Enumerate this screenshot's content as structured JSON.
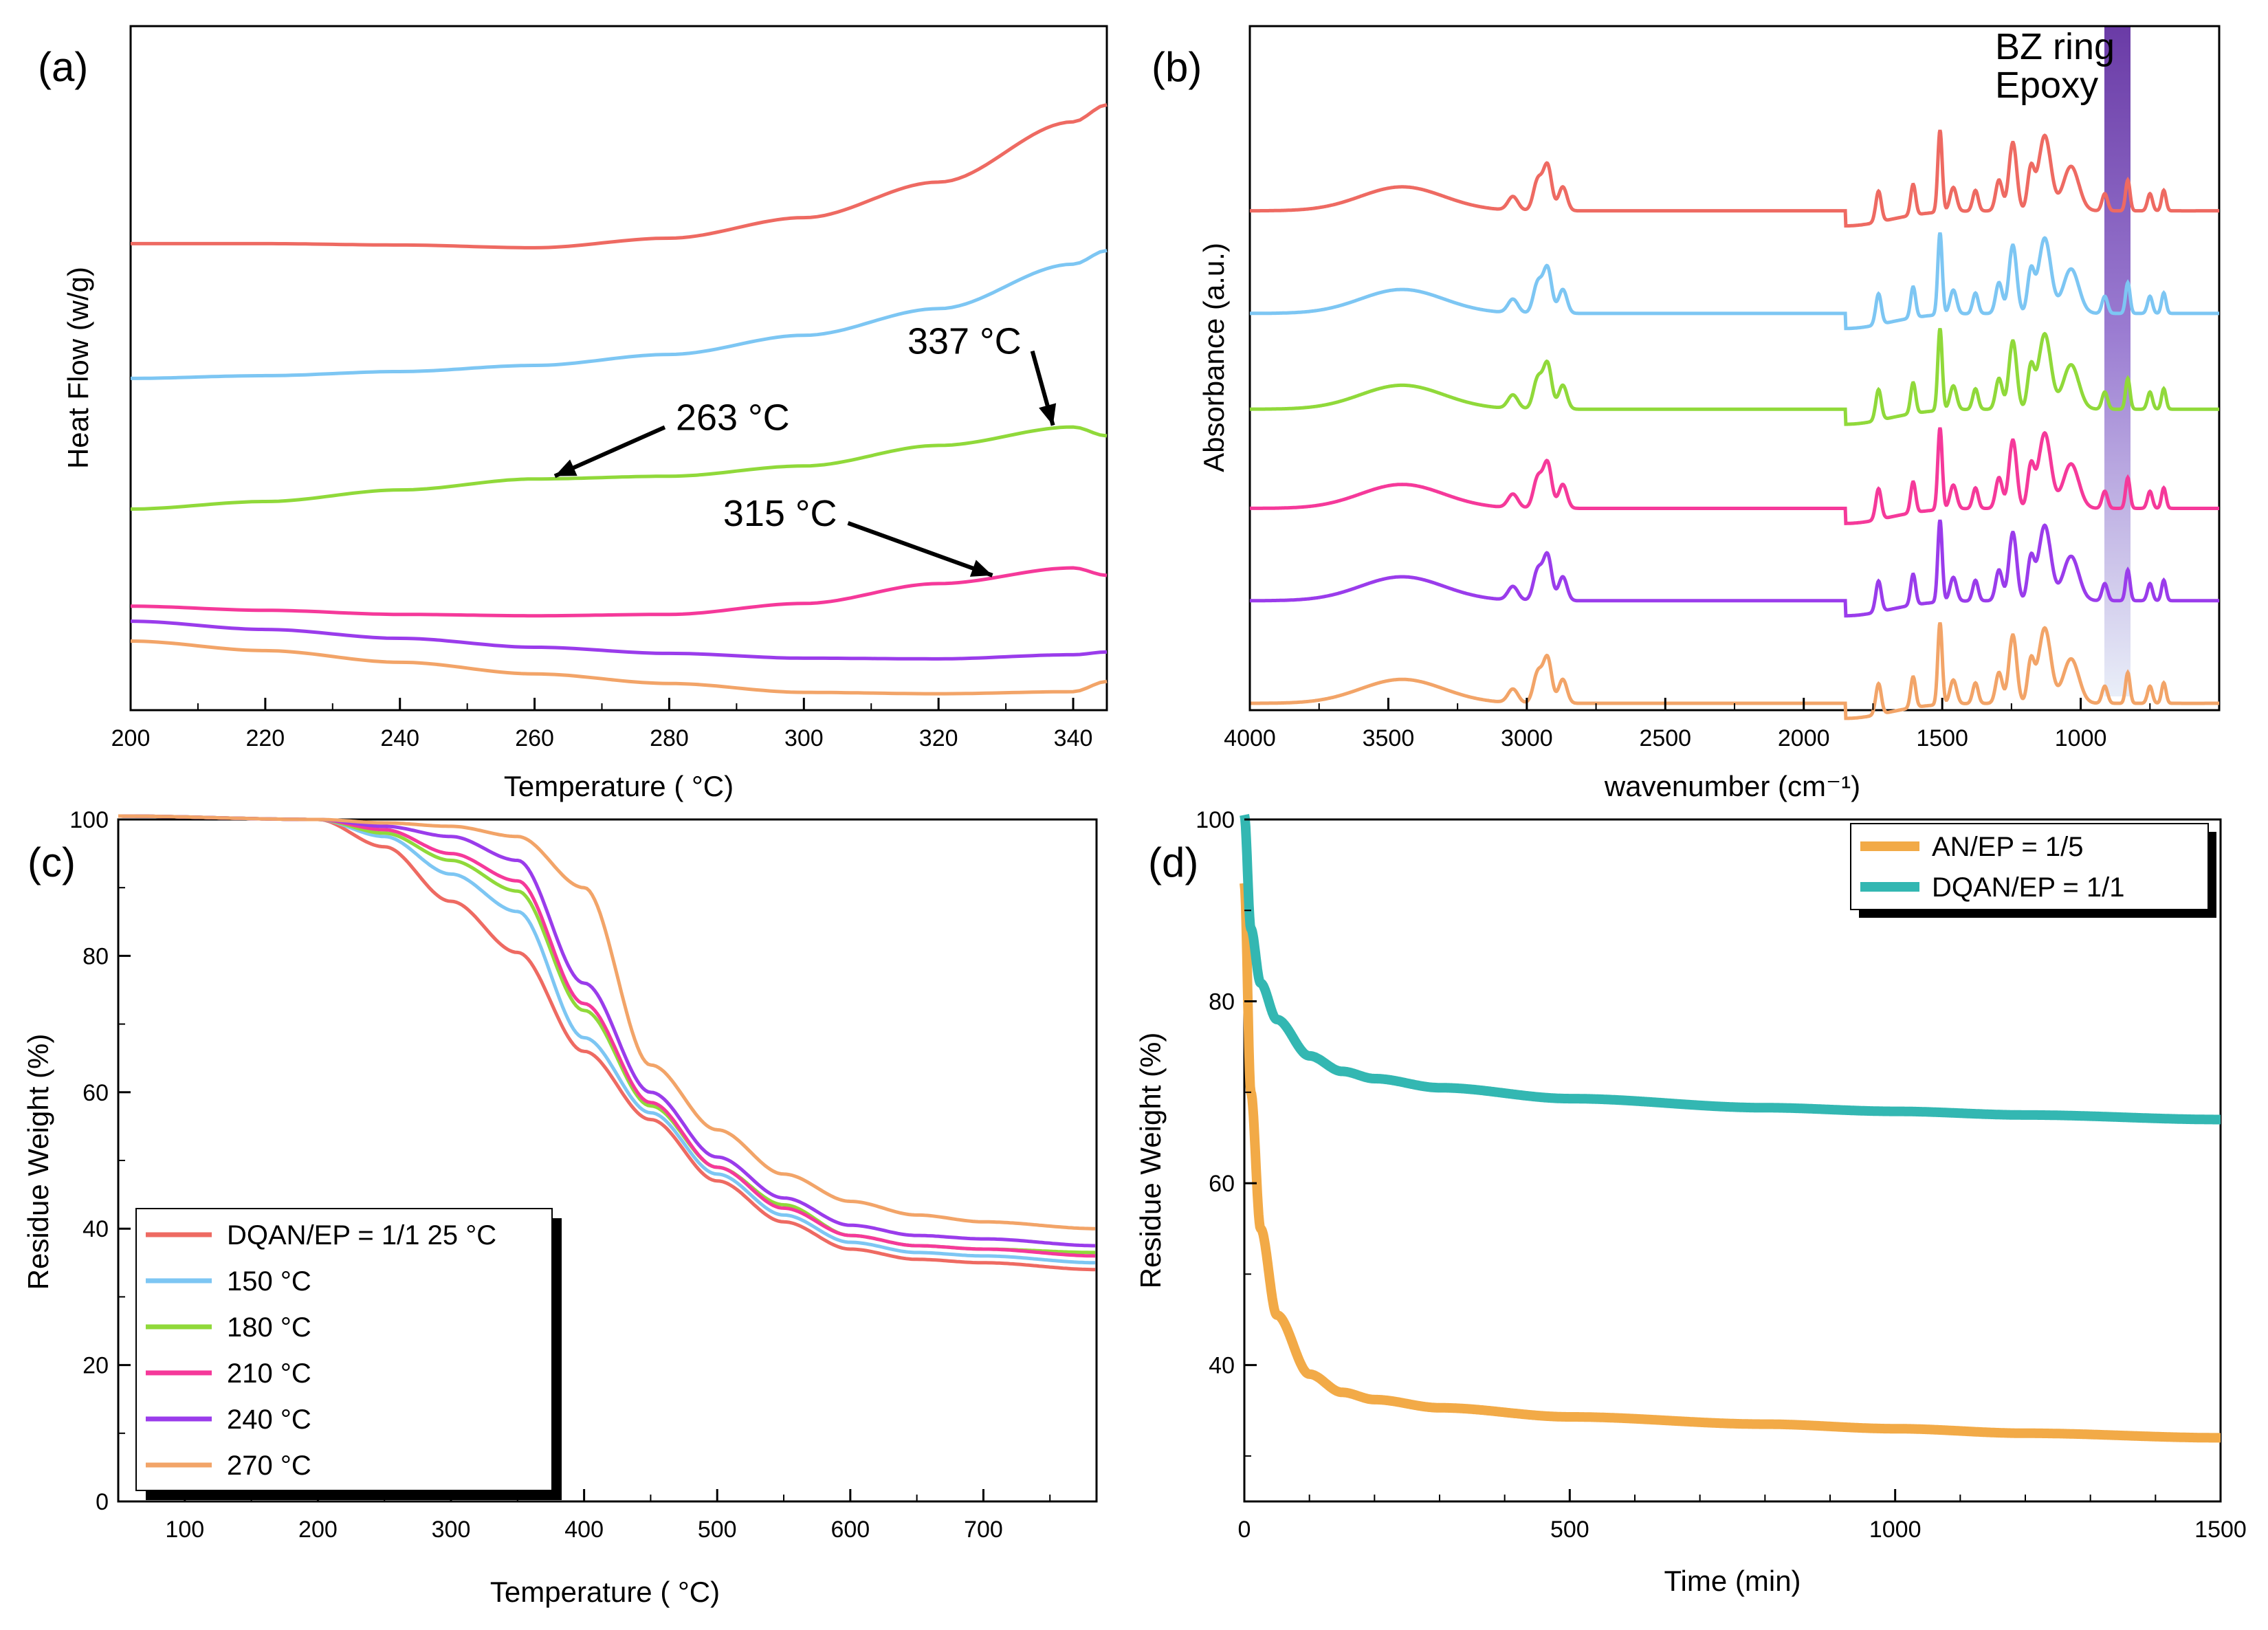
{
  "chart_data": [
    {
      "panel": "(a)",
      "type": "line",
      "xlabel": "Temperature ( °C)",
      "ylabel": "Heat Flow (w/g)",
      "xlim": [
        200,
        345
      ],
      "ylim": [
        0,
        100
      ],
      "xticks": [
        200,
        220,
        240,
        260,
        280,
        300,
        320,
        340
      ],
      "x": [
        200,
        220,
        240,
        260,
        280,
        300,
        320,
        340,
        345
      ],
      "series": [
        {
          "name": "25 °C",
          "color": "#EE6A62",
          "values": [
            68.2,
            68.2,
            68.0,
            67.6,
            69.0,
            72.0,
            77.2,
            86.0,
            88.5
          ]
        },
        {
          "name": "150 °C",
          "color": "#7DC6F3",
          "values": [
            48.5,
            48.9,
            49.5,
            50.4,
            52.0,
            54.8,
            58.7,
            65.2,
            67.2
          ]
        },
        {
          "name": "180 °C",
          "color": "#90D93A",
          "values": [
            29.4,
            30.5,
            32.2,
            33.8,
            34.2,
            35.7,
            38.7,
            41.4,
            40.1
          ]
        },
        {
          "name": "210 °C",
          "color": "#F5399A",
          "values": [
            15.2,
            14.6,
            14.0,
            13.8,
            14.0,
            15.6,
            18.5,
            20.8,
            19.7
          ]
        },
        {
          "name": "240 °C",
          "color": "#9A3CEB",
          "values": [
            13.0,
            11.8,
            10.5,
            9.2,
            8.3,
            7.6,
            7.5,
            8.1,
            8.5
          ]
        },
        {
          "name": "270 °C",
          "color": "#F2A468",
          "values": [
            10.1,
            8.7,
            7.0,
            5.3,
            3.9,
            2.6,
            2.4,
            2.7,
            4.2
          ]
        }
      ],
      "annotations": [
        {
          "label": "263 °C",
          "x": 263,
          "series": "180 °C"
        },
        {
          "label": "337 °C",
          "x": 337,
          "series": "180 °C"
        },
        {
          "label": "315 °C",
          "x": 328,
          "series": "210 °C"
        }
      ]
    },
    {
      "panel": "(b)",
      "type": "line",
      "xlabel": "wavenumber (cm⁻¹)",
      "ylabel": "Absorbance (a.u.)",
      "xlim": [
        4000,
        500
      ],
      "ylim": [
        0,
        100
      ],
      "xticks": [
        4000,
        3500,
        3000,
        2500,
        2000,
        1500,
        1000
      ],
      "band_labels": [
        "BZ ring",
        "Epoxy"
      ],
      "band_center": 913,
      "peaks": [
        {
          "x": 3450,
          "w": 150,
          "h": 3.5
        },
        {
          "x": 3050,
          "w": 18,
          "h": 2.0
        },
        {
          "x": 2960,
          "w": 16,
          "h": 4.5
        },
        {
          "x": 2925,
          "w": 15,
          "h": 6.5
        },
        {
          "x": 2870,
          "w": 15,
          "h": 3.5
        },
        {
          "x": 1730,
          "w": 10,
          "h": 4.5
        },
        {
          "x": 1605,
          "w": 9,
          "h": 4.5
        },
        {
          "x": 1508,
          "w": 8,
          "h": 12.0
        },
        {
          "x": 1460,
          "w": 12,
          "h": 3.5
        },
        {
          "x": 1380,
          "w": 10,
          "h": 3.0
        },
        {
          "x": 1295,
          "w": 12,
          "h": 4.5
        },
        {
          "x": 1245,
          "w": 14,
          "h": 10.0
        },
        {
          "x": 1180,
          "w": 12,
          "h": 6.0
        },
        {
          "x": 1130,
          "w": 22,
          "h": 11.0
        },
        {
          "x": 1035,
          "w": 28,
          "h": 6.5
        },
        {
          "x": 913,
          "w": 10,
          "h": 2.5
        },
        {
          "x": 830,
          "w": 8,
          "h": 4.5
        },
        {
          "x": 750,
          "w": 9,
          "h": 2.5
        },
        {
          "x": 700,
          "w": 8,
          "h": 3.0
        }
      ],
      "series": [
        {
          "name": "25 °C",
          "color": "#EE6A62",
          "baseline": 73.0
        },
        {
          "name": "150 °C",
          "color": "#7DC6F3",
          "baseline": 58.0
        },
        {
          "name": "180 °C",
          "color": "#90D93A",
          "baseline": 44.0
        },
        {
          "name": "210 °C",
          "color": "#F5399A",
          "baseline": 29.5
        },
        {
          "name": "240 °C",
          "color": "#9A3CEB",
          "baseline": 16.0
        },
        {
          "name": "270 °C",
          "color": "#F2A468",
          "baseline": 1.0
        }
      ]
    },
    {
      "panel": "(c)",
      "type": "line",
      "xlabel": "Temperature ( °C)",
      "ylabel": "Residue Weight (%)",
      "xlim": [
        50,
        785
      ],
      "ylim": [
        0,
        100
      ],
      "xticks": [
        100,
        200,
        300,
        400,
        500,
        600,
        700
      ],
      "yticks": [
        0,
        20,
        40,
        60,
        80,
        100
      ],
      "x": [
        50,
        200,
        250,
        300,
        350,
        400,
        450,
        500,
        550,
        600,
        650,
        700,
        785
      ],
      "series": [
        {
          "name": "DQAN/EP = 1/1 25 °C",
          "color": "#EE6A62",
          "values": [
            100.5,
            100.0,
            96.0,
            88.0,
            80.5,
            66.0,
            56.0,
            47.0,
            41.0,
            37.0,
            35.5,
            35.0,
            34.0
          ]
        },
        {
          "name": "150 °C",
          "color": "#7DC6F3",
          "values": [
            100.5,
            100.0,
            97.5,
            92.0,
            86.5,
            68.0,
            57.0,
            48.0,
            42.0,
            38.0,
            36.5,
            36.0,
            35.0
          ]
        },
        {
          "name": "180 °C",
          "color": "#90D93A",
          "values": [
            100.5,
            100.0,
            98.0,
            94.0,
            89.5,
            72.0,
            58.0,
            49.0,
            43.5,
            39.0,
            37.5,
            37.0,
            36.5
          ]
        },
        {
          "name": "210 °C",
          "color": "#F5399A",
          "values": [
            100.5,
            100.0,
            98.5,
            95.0,
            91.0,
            73.0,
            58.5,
            49.0,
            43.0,
            39.0,
            37.5,
            37.0,
            36.0
          ]
        },
        {
          "name": "240 °C",
          "color": "#9A3CEB",
          "values": [
            100.5,
            100.0,
            99.0,
            97.5,
            94.0,
            76.0,
            60.0,
            50.5,
            44.5,
            40.5,
            39.0,
            38.5,
            37.5
          ]
        },
        {
          "name": "270 °C",
          "color": "#F2A468",
          "values": [
            100.5,
            100.0,
            99.5,
            99.0,
            97.5,
            90.0,
            64.0,
            54.5,
            48.0,
            44.0,
            42.0,
            41.0,
            40.0
          ]
        }
      ],
      "legend": "bottom-left"
    },
    {
      "panel": "(d)",
      "type": "line",
      "xlabel": "Time (min)",
      "ylabel": "Residue Weight (%)",
      "xlim": [
        0,
        1500
      ],
      "ylim": [
        25,
        100
      ],
      "xticks": [
        0,
        500,
        1000,
        1500
      ],
      "yticks": [
        40,
        60,
        80,
        100
      ],
      "x": [
        0,
        10,
        25,
        50,
        100,
        150,
        200,
        300,
        500,
        800,
        1000,
        1200,
        1500
      ],
      "series": [
        {
          "name": "AN/EP = 1/5",
          "color": "#F2AA47",
          "values": [
            93.0,
            70.0,
            55.0,
            45.5,
            39.0,
            37.0,
            36.2,
            35.3,
            34.3,
            33.5,
            33.0,
            32.5,
            32.0
          ]
        },
        {
          "name": "DQAN/EP = 1/1",
          "color": "#33B7B2",
          "values": [
            100.5,
            88.0,
            82.0,
            78.0,
            74.0,
            72.3,
            71.5,
            70.5,
            69.3,
            68.3,
            67.9,
            67.5,
            67.0
          ]
        }
      ],
      "legend": "top-right"
    }
  ]
}
